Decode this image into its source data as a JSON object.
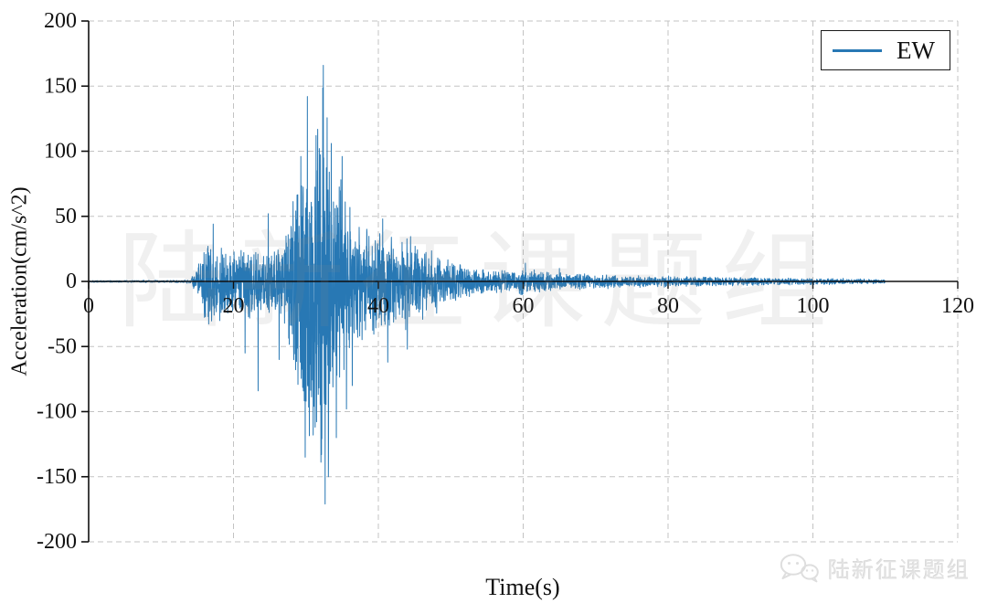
{
  "figure": {
    "background": "#ffffff",
    "watermark_text": "陆新征课题组",
    "footer_brand": {
      "icon": "wechat-icon",
      "text": "陆新征课题组"
    }
  },
  "chart_data": {
    "type": "line",
    "title": "",
    "xlabel": "Time(s)",
    "ylabel": "Acceleration(cm/s^2)",
    "xlim": [
      0,
      120
    ],
    "ylim": [
      -200,
      200
    ],
    "xticks": [
      0,
      20,
      40,
      60,
      80,
      100,
      120
    ],
    "yticks": [
      200,
      150,
      100,
      50,
      0,
      -50,
      -100,
      -150,
      -200
    ],
    "grid": {
      "style": "dashed",
      "color": "#c3c3c3"
    },
    "axis_color": "#111111",
    "legend": {
      "position": "top-right",
      "entries": [
        {
          "label": "EW",
          "color": "#2878b4"
        }
      ]
    },
    "series": [
      {
        "name": "EW",
        "color": "#2878b4",
        "start_time": 0,
        "end_time": 110,
        "sample_dt": 0.025,
        "peak_positive": {
          "time": 32.4,
          "value": 166
        },
        "peak_negative": {
          "time": 32.65,
          "value": -171
        },
        "envelope": [
          [
            0,
            0.8
          ],
          [
            13,
            1
          ],
          [
            14,
            2
          ],
          [
            15,
            10
          ],
          [
            16,
            30
          ],
          [
            17,
            40
          ],
          [
            18,
            32
          ],
          [
            20,
            27
          ],
          [
            22,
            30
          ],
          [
            24,
            27
          ],
          [
            26,
            32
          ],
          [
            27,
            38
          ],
          [
            28,
            60
          ],
          [
            29,
            100
          ],
          [
            30,
            140
          ],
          [
            31,
            120
          ],
          [
            32,
            165
          ],
          [
            33,
            140
          ],
          [
            34,
            105
          ],
          [
            35,
            95
          ],
          [
            36,
            72
          ],
          [
            37,
            55
          ],
          [
            38,
            50
          ],
          [
            39,
            46
          ],
          [
            41,
            46
          ],
          [
            43,
            40
          ],
          [
            45,
            36
          ],
          [
            47,
            28
          ],
          [
            49,
            22
          ],
          [
            51,
            15
          ],
          [
            53,
            12
          ],
          [
            56,
            10
          ],
          [
            59,
            9
          ],
          [
            60,
            12
          ],
          [
            61,
            10
          ],
          [
            63,
            8
          ],
          [
            66,
            7
          ],
          [
            70,
            6
          ],
          [
            75,
            5
          ],
          [
            80,
            4.5
          ],
          [
            85,
            4
          ],
          [
            90,
            3.5
          ],
          [
            95,
            3
          ],
          [
            100,
            2.8
          ],
          [
            104,
            2.4
          ],
          [
            108,
            2
          ],
          [
            110,
            1.6
          ]
        ],
        "notable_peaks": [
          [
            17.2,
            44
          ],
          [
            21.6,
            -55
          ],
          [
            23.4,
            -84
          ],
          [
            24.8,
            52
          ],
          [
            26.3,
            -60
          ],
          [
            29.3,
            96
          ],
          [
            29.9,
            -135
          ],
          [
            30.2,
            142
          ],
          [
            31.0,
            -118
          ],
          [
            31.4,
            112
          ],
          [
            32.4,
            166
          ],
          [
            32.65,
            -171
          ],
          [
            33.1,
            -150
          ],
          [
            33.5,
            106
          ],
          [
            34.2,
            -120
          ],
          [
            35.0,
            96
          ],
          [
            35.6,
            -98
          ],
          [
            36.4,
            -80
          ],
          [
            40.6,
            48
          ],
          [
            41.3,
            -62
          ],
          [
            44.0,
            -52
          ],
          [
            60.3,
            14
          ],
          [
            65.0,
            10
          ]
        ]
      }
    ]
  }
}
